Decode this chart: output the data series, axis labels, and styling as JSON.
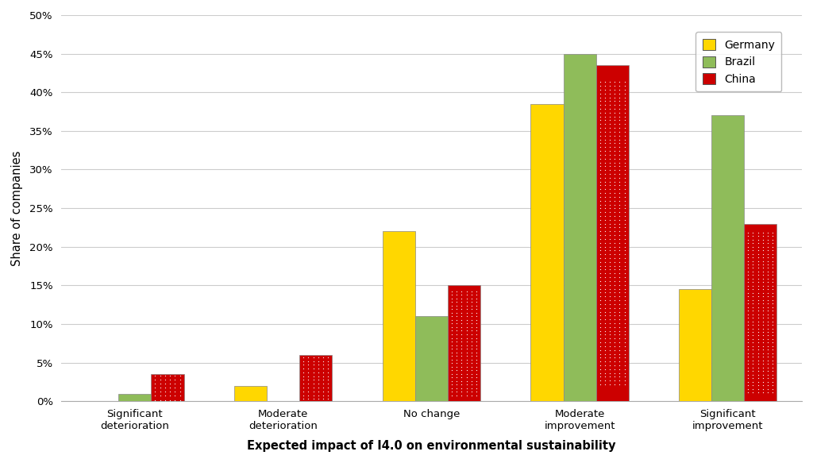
{
  "categories": [
    "Significant\ndeterioration",
    "Moderate\ndeterioration",
    "No change",
    "Moderate\nimprovement",
    "Significant\nimprovement"
  ],
  "germany": [
    0,
    2,
    22,
    38.5,
    14.5
  ],
  "brazil": [
    1,
    0,
    11,
    45,
    37
  ],
  "china": [
    3.5,
    6,
    15,
    43.5,
    23
  ],
  "germany_color": "#FFD700",
  "brazil_color": "#8FBC5A",
  "china_color": "#CC0000",
  "ylabel": "Share of companies",
  "xlabel": "Expected impact of I4.0 on environmental sustainability",
  "ylim_max": 0.5,
  "yticks": [
    0,
    0.05,
    0.1,
    0.15,
    0.2,
    0.25,
    0.3,
    0.35,
    0.4,
    0.45,
    0.5
  ],
  "ytick_labels": [
    "0%",
    "5%",
    "10%",
    "15%",
    "20%",
    "25%",
    "30%",
    "35%",
    "40%",
    "45%",
    "50%"
  ],
  "legend_labels": [
    "Germany",
    "Brazil",
    "China"
  ],
  "bar_width": 0.22,
  "background_color": "#ffffff",
  "grid_color": "#cccccc",
  "spine_color": "#aaaaaa"
}
